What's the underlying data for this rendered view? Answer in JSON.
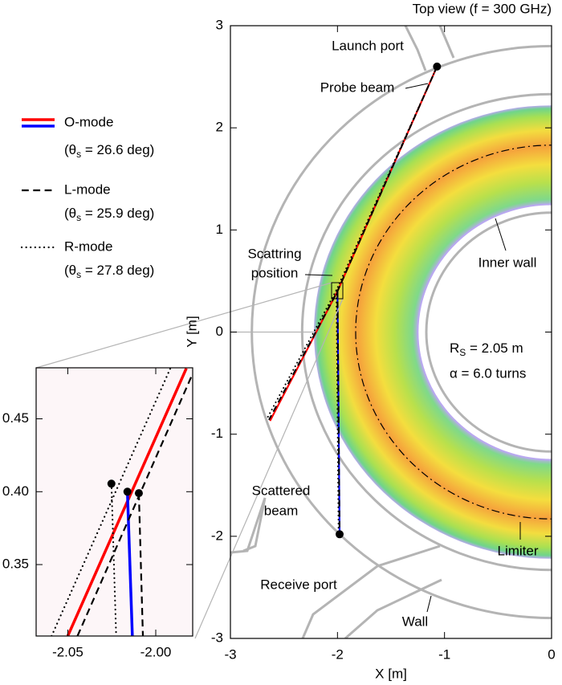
{
  "chart_data": [
    {
      "type": "ray-trace",
      "title": "Top view (f = 300 GHz)",
      "x_label": "X [m]",
      "y_label": "Y [m]",
      "xlim": [
        -3,
        0
      ],
      "ylim": [
        -3,
        3
      ],
      "xticks": [
        -3,
        -2,
        -1,
        0
      ],
      "yticks": [
        -3,
        -2,
        -1,
        0,
        1,
        2,
        3
      ],
      "plasma_r": [
        1.25,
        2.22
      ],
      "rings": [
        {
          "r": 2.8,
          "style": "wall"
        },
        {
          "r": 2.33,
          "style": "wall"
        },
        {
          "r": 1.17,
          "style": "wall"
        },
        {
          "r": 1.83,
          "style": "dash-dot"
        }
      ],
      "series": [
        {
          "name": "O-mode",
          "color": "#ff0000",
          "scattered_color": "#0000ff",
          "dash": "solid",
          "angle_label": {
            "pre": "(θ",
            "sub": "s",
            "post": " = 26.6 deg)"
          },
          "probe_x": [
            -1.07,
            -2.0,
            -2.63
          ],
          "probe_y": [
            2.6,
            0.4,
            -0.87
          ],
          "scattered_x": [
            -2.0,
            -1.98
          ],
          "scattered_y": [
            0.4,
            -1.98
          ]
        },
        {
          "name": "L-mode",
          "color": "#000000",
          "dash": "dashed",
          "angle_label": {
            "pre": "(θ",
            "sub": "s",
            "post": " = 25.9 deg)"
          },
          "probe_x": [
            -1.07,
            -2.0,
            -2.64
          ],
          "probe_y": [
            2.6,
            0.4,
            -0.86
          ],
          "scattered_x": [
            -2.0,
            -1.98
          ],
          "scattered_y": [
            0.4,
            -1.98
          ]
        },
        {
          "name": "R-mode",
          "color": "#000000",
          "dash": "dotted",
          "angle_label": {
            "pre": "(θ",
            "sub": "s",
            "post": " = 27.8 deg)"
          },
          "probe_x": [
            -1.07,
            -2.01,
            -2.66
          ],
          "probe_y": [
            2.6,
            0.41,
            -0.85
          ],
          "scattered_x": [
            -2.01,
            -1.99
          ],
          "scattered_y": [
            0.41,
            -1.98
          ]
        }
      ],
      "points": {
        "x": [
          -1.07,
          -1.98
        ],
        "y": [
          2.6,
          -1.98
        ]
      },
      "annotations": [
        "Launch port",
        "Probe beam",
        "Scattring",
        "position",
        "Inner wall",
        "Scattered",
        "beam",
        "Receive port",
        "Wall",
        "Limiter",
        "α = 6.0 turns"
      ],
      "radius_label": {
        "pre": "R",
        "sub": "S",
        "post": " = 2.05 m"
      }
    },
    {
      "type": "ray-trace",
      "xlim": [
        -2.068,
        -1.979
      ],
      "ylim": [
        0.301,
        0.485
      ],
      "xticks": [
        -2.05,
        {
          "value": -2,
          "label": "-2.00"
        }
      ],
      "yticks": [
        0.35,
        {
          "value": 0.4,
          "label": "0.40"
        },
        0.45
      ],
      "series": [
        {
          "color": "#ff0000",
          "scattered_color": "#0000ff",
          "dash": "solid",
          "probe_x": [
            -2.05,
            -1.9826
          ],
          "probe_y": [
            0.301,
            0.4846
          ],
          "scattered_x": [
            -2.0161,
            -2.0133
          ],
          "scattered_y": [
            0.4,
            0.301
          ]
        },
        {
          "color": "#000000",
          "dash": "dashed",
          "probe_x": [
            -2.0445,
            -1.979
          ],
          "probe_y": [
            0.301,
            0.481
          ],
          "scattered_x": [
            -2.0096,
            -2.0073
          ],
          "scattered_y": [
            0.399,
            0.301
          ]
        },
        {
          "color": "#000000",
          "dash": "dotted",
          "probe_x": [
            -2.0592,
            -1.9917
          ],
          "probe_y": [
            0.301,
            0.4846
          ],
          "scattered_x": [
            -2.0252,
            -2.0225
          ],
          "scattered_y": [
            0.4055,
            0.301
          ]
        }
      ],
      "points": {
        "x": [
          -2.0252,
          -2.0161,
          -2.0096
        ],
        "y": [
          0.4055,
          0.4,
          0.399
        ]
      }
    }
  ]
}
